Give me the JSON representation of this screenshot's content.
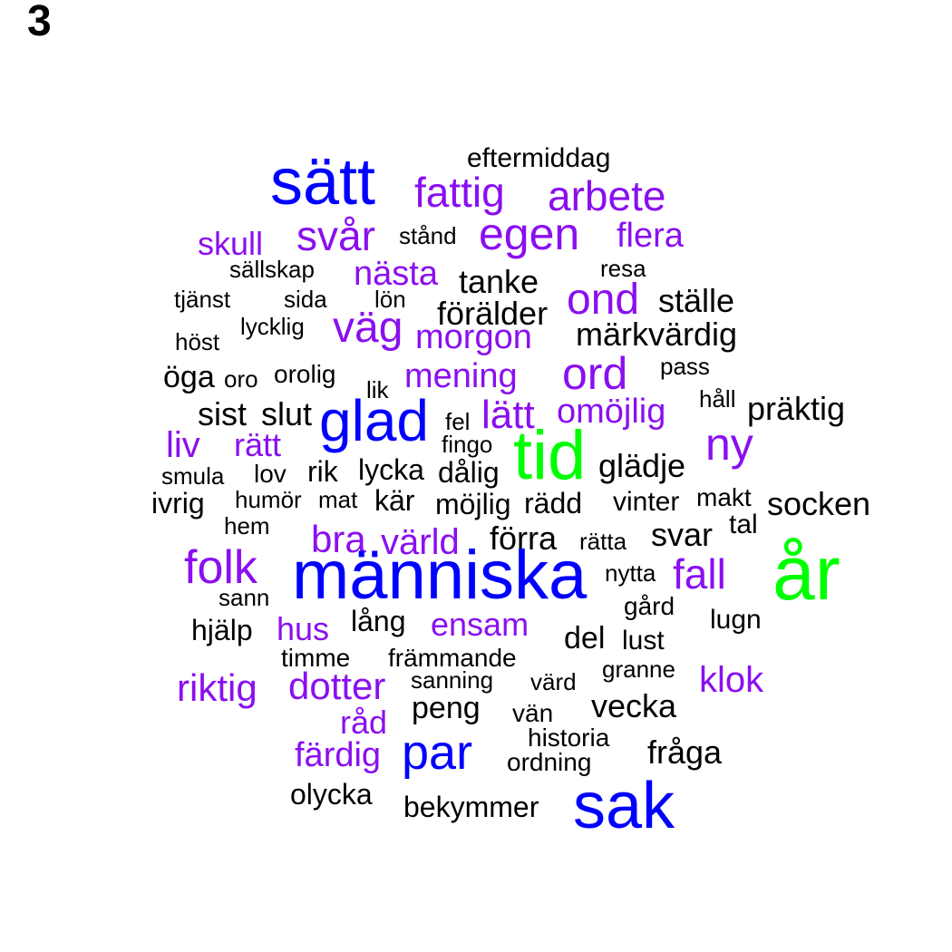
{
  "panel_label": "3",
  "colors": {
    "tier_0": "#000000",
    "tier_1": "#8a0ff0",
    "tier_2": "#0000ff",
    "tier_3": "#00ff00"
  },
  "words": [
    {
      "text": "eftermiddag",
      "tier": 0
    },
    {
      "text": "sätt",
      "tier": 2
    },
    {
      "text": "fattig",
      "tier": 1
    },
    {
      "text": "arbete",
      "tier": 1
    },
    {
      "text": "skull",
      "tier": 1
    },
    {
      "text": "svår",
      "tier": 1
    },
    {
      "text": "stånd",
      "tier": 0
    },
    {
      "text": "egen",
      "tier": 1
    },
    {
      "text": "flera",
      "tier": 1
    },
    {
      "text": "sällskap",
      "tier": 0
    },
    {
      "text": "nästa",
      "tier": 1
    },
    {
      "text": "tanke",
      "tier": 0
    },
    {
      "text": "resa",
      "tier": 0
    },
    {
      "text": "tjänst",
      "tier": 0
    },
    {
      "text": "sida",
      "tier": 0
    },
    {
      "text": "lön",
      "tier": 0
    },
    {
      "text": "förälder",
      "tier": 0
    },
    {
      "text": "ond",
      "tier": 1
    },
    {
      "text": "ställe",
      "tier": 0
    },
    {
      "text": "lycklig",
      "tier": 0
    },
    {
      "text": "väg",
      "tier": 1
    },
    {
      "text": "morgon",
      "tier": 1
    },
    {
      "text": "märkvärdig",
      "tier": 0
    },
    {
      "text": "höst",
      "tier": 0
    },
    {
      "text": "öga",
      "tier": 0
    },
    {
      "text": "oro",
      "tier": 0
    },
    {
      "text": "orolig",
      "tier": 0
    },
    {
      "text": "lik",
      "tier": 0
    },
    {
      "text": "mening",
      "tier": 1
    },
    {
      "text": "ord",
      "tier": 1
    },
    {
      "text": "pass",
      "tier": 0
    },
    {
      "text": "sist",
      "tier": 0
    },
    {
      "text": "slut",
      "tier": 0
    },
    {
      "text": "glad",
      "tier": 2
    },
    {
      "text": "fel",
      "tier": 0
    },
    {
      "text": "lätt",
      "tier": 1
    },
    {
      "text": "omöjlig",
      "tier": 1
    },
    {
      "text": "håll",
      "tier": 0
    },
    {
      "text": "präktig",
      "tier": 0
    },
    {
      "text": "liv",
      "tier": 1
    },
    {
      "text": "rätt",
      "tier": 1
    },
    {
      "text": "fingo",
      "tier": 0
    },
    {
      "text": "tid",
      "tier": 3
    },
    {
      "text": "ny",
      "tier": 1
    },
    {
      "text": "smula",
      "tier": 0
    },
    {
      "text": "lov",
      "tier": 0
    },
    {
      "text": "rik",
      "tier": 0
    },
    {
      "text": "lycka",
      "tier": 0
    },
    {
      "text": "dålig",
      "tier": 0
    },
    {
      "text": "glädje",
      "tier": 0
    },
    {
      "text": "ivrig",
      "tier": 0
    },
    {
      "text": "humör",
      "tier": 0
    },
    {
      "text": "mat",
      "tier": 0
    },
    {
      "text": "kär",
      "tier": 0
    },
    {
      "text": "möjlig",
      "tier": 0
    },
    {
      "text": "rädd",
      "tier": 0
    },
    {
      "text": "vinter",
      "tier": 0
    },
    {
      "text": "makt",
      "tier": 0
    },
    {
      "text": "socken",
      "tier": 0
    },
    {
      "text": "hem",
      "tier": 0
    },
    {
      "text": "bra",
      "tier": 1
    },
    {
      "text": "värld",
      "tier": 1
    },
    {
      "text": "förra",
      "tier": 0
    },
    {
      "text": "rätta",
      "tier": 0
    },
    {
      "text": "svar",
      "tier": 0
    },
    {
      "text": "tal",
      "tier": 0
    },
    {
      "text": "folk",
      "tier": 1
    },
    {
      "text": "människa",
      "tier": 2
    },
    {
      "text": "nytta",
      "tier": 0
    },
    {
      "text": "fall",
      "tier": 1
    },
    {
      "text": "år",
      "tier": 3
    },
    {
      "text": "sann",
      "tier": 0
    },
    {
      "text": "gård",
      "tier": 0
    },
    {
      "text": "hjälp",
      "tier": 0
    },
    {
      "text": "hus",
      "tier": 1
    },
    {
      "text": "lång",
      "tier": 0
    },
    {
      "text": "ensam",
      "tier": 1
    },
    {
      "text": "lugn",
      "tier": 0
    },
    {
      "text": "del",
      "tier": 0
    },
    {
      "text": "lust",
      "tier": 0
    },
    {
      "text": "timme",
      "tier": 0
    },
    {
      "text": "främmande",
      "tier": 0
    },
    {
      "text": "granne",
      "tier": 0
    },
    {
      "text": "riktig",
      "tier": 1
    },
    {
      "text": "dotter",
      "tier": 1
    },
    {
      "text": "sanning",
      "tier": 0
    },
    {
      "text": "värd",
      "tier": 0
    },
    {
      "text": "klok",
      "tier": 1
    },
    {
      "text": "råd",
      "tier": 1
    },
    {
      "text": "peng",
      "tier": 0
    },
    {
      "text": "vän",
      "tier": 0
    },
    {
      "text": "vecka",
      "tier": 0
    },
    {
      "text": "historia",
      "tier": 0
    },
    {
      "text": "färdig",
      "tier": 1
    },
    {
      "text": "par",
      "tier": 2
    },
    {
      "text": "ordning",
      "tier": 0
    },
    {
      "text": "fråga",
      "tier": 0
    },
    {
      "text": "olycka",
      "tier": 0
    },
    {
      "text": "bekymmer",
      "tier": 0
    },
    {
      "text": "sak",
      "tier": 2
    }
  ]
}
